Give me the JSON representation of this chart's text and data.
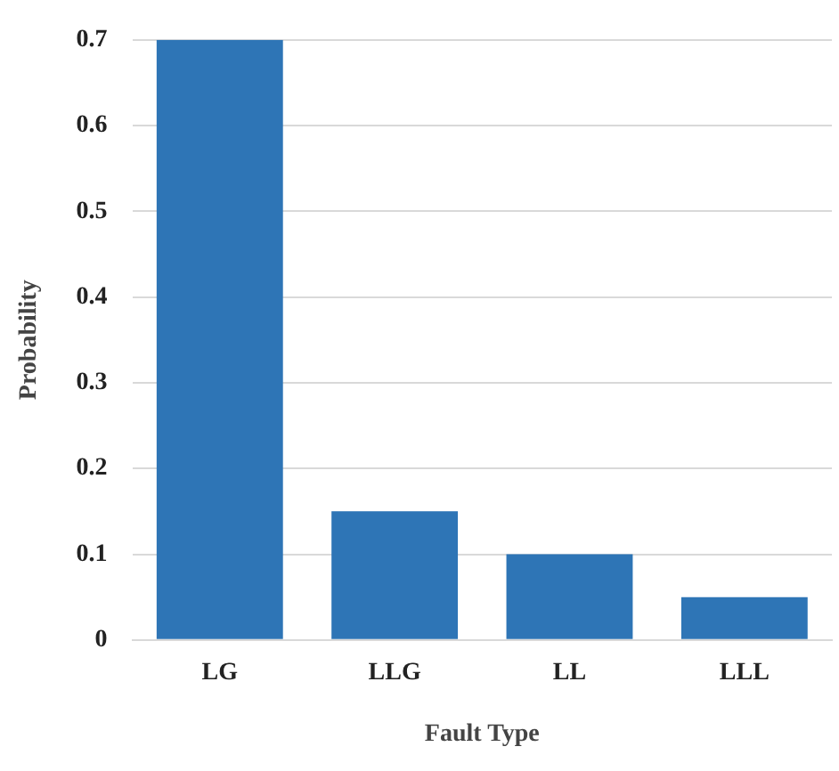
{
  "chart_data": {
    "type": "bar",
    "xlabel": "Fault Type",
    "ylabel": "Probability",
    "categories": [
      "LG",
      "LLG",
      "LL",
      "LLL"
    ],
    "values": [
      0.7,
      0.15,
      0.1,
      0.05
    ],
    "color": "#2e75b6",
    "ylim": [
      0,
      0.7
    ],
    "yticks": [
      0,
      0.1,
      0.2,
      0.3,
      0.4,
      0.5,
      0.6,
      0.7
    ],
    "grid": "y"
  }
}
